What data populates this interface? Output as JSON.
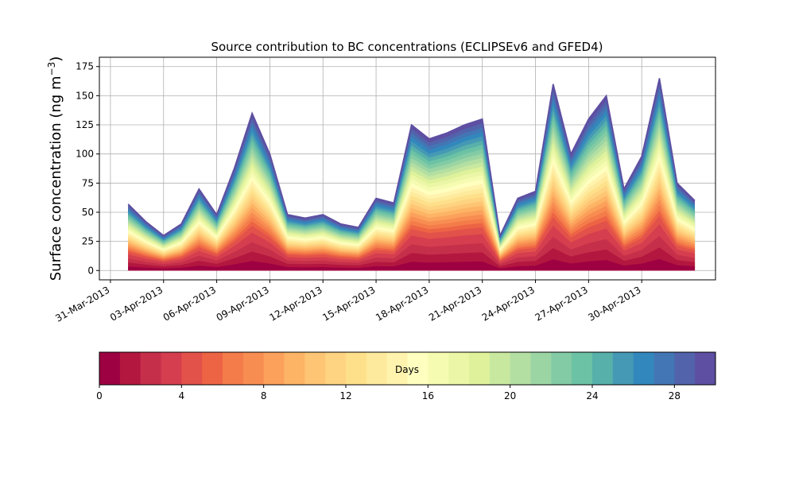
{
  "chart_data": {
    "type": "area",
    "stacked": true,
    "title": "Source contribution to BC concentrations (ECLIPSEv6 and GFED4)",
    "ylabel": "Surface concentration (ng m",
    "ylabel_sup": "−3",
    "ylabel_close": ")",
    "xlabel": "",
    "ylim": [
      -8,
      183
    ],
    "xlim": [
      "2013-03-30T09:00",
      "2013-05-04T04:00"
    ],
    "grid": true,
    "y_ticks": [
      "0",
      "25",
      "50",
      "75",
      "100",
      "125",
      "150",
      "175"
    ],
    "y_tick_values": [
      0,
      25,
      50,
      75,
      100,
      125,
      150,
      175
    ],
    "x_ticks": [
      "31-Mar-2013",
      "03-Apr-2013",
      "06-Apr-2013",
      "09-Apr-2013",
      "12-Apr-2013",
      "15-Apr-2013",
      "18-Apr-2013",
      "21-Apr-2013",
      "24-Apr-2013",
      "27-Apr-2013",
      "30-Apr-2013"
    ],
    "x_tick_values": [
      "2013-03-31",
      "2013-04-03",
      "2013-04-06",
      "2013-04-09",
      "2013-04-12",
      "2013-04-15",
      "2013-04-18",
      "2013-04-21",
      "2013-04-24",
      "2013-04-27",
      "2013-04-30"
    ],
    "x": [
      "2013-04-01",
      "2013-04-02",
      "2013-04-03",
      "2013-04-04",
      "2013-04-05",
      "2013-04-06",
      "2013-04-07",
      "2013-04-08",
      "2013-04-09",
      "2013-04-10",
      "2013-04-11",
      "2013-04-12",
      "2013-04-13",
      "2013-04-14",
      "2013-04-15",
      "2013-04-16",
      "2013-04-17",
      "2013-04-18",
      "2013-04-19",
      "2013-04-20",
      "2013-04-21",
      "2013-04-22",
      "2013-04-23",
      "2013-04-24",
      "2013-04-25",
      "2013-04-26",
      "2013-04-27",
      "2013-04-28",
      "2013-04-29",
      "2013-04-30",
      "2013-05-01",
      "2013-05-02",
      "2013-05-03"
    ],
    "total": [
      57,
      42,
      30,
      40,
      70,
      48,
      88,
      135,
      100,
      48,
      45,
      48,
      40,
      37,
      62,
      58,
      125,
      113,
      118,
      125,
      130,
      30,
      62,
      68,
      160,
      100,
      130,
      150,
      70,
      98,
      165,
      75,
      60
    ],
    "colorbar": {
      "label": "Days",
      "min": 0,
      "max": 30,
      "ticks": [
        "0",
        "4",
        "8",
        "12",
        "16",
        "20",
        "24",
        "28"
      ],
      "tick_values": [
        0,
        4,
        8,
        12,
        16,
        20,
        24,
        28
      ],
      "colors": [
        "#9e0142",
        "#b3173f",
        "#c52f4a",
        "#d53e4f",
        "#e2514a",
        "#ed6445",
        "#f47c4a",
        "#f88d52",
        "#fba15b",
        "#fdb465",
        "#fec574",
        "#fed381",
        "#fee08b",
        "#feea9c",
        "#fff3ae",
        "#ffffbf",
        "#f6fbb2",
        "#ebf7a6",
        "#dff29b",
        "#c8e8a0",
        "#b4dfa2",
        "#9cd5a4",
        "#82cba5",
        "#6cc2a4",
        "#58b0ab",
        "#4599b4",
        "#3288bd",
        "#4376b4",
        "#5263ab",
        "#5e4fa2"
      ]
    }
  }
}
